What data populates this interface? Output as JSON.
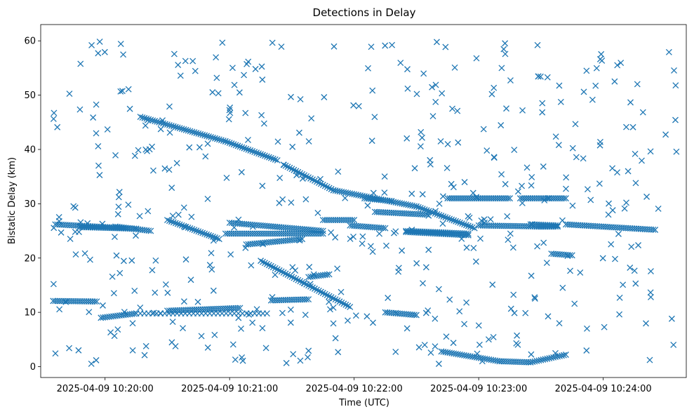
{
  "chart_data": {
    "type": "scatter",
    "title": "Detections in Delay",
    "xlabel": "Time (UTC)",
    "ylabel": "Bistatic Delay (km)",
    "marker": "x",
    "color": "#1f77b4",
    "grid": false,
    "x_axis_type": "datetime",
    "xlim": [
      "2025-04-09 10:19:29",
      "2025-04-09 10:24:40"
    ],
    "ylim": [
      -2,
      63
    ],
    "x_ticks": [
      "2025-04-09 10:20:00",
      "2025-04-09 10:21:00",
      "2025-04-09 10:22:00",
      "2025-04-09 10:23:00",
      "2025-04-09 10:24:00"
    ],
    "y_ticks": [
      0,
      10,
      20,
      30,
      40,
      50,
      60
    ],
    "tracks": [
      {
        "from": [
          "2025-04-09 10:19:36",
          26.2
        ],
        "to": [
          "2025-04-09 10:20:15",
          25.4
        ],
        "step_s": 1
      },
      {
        "from": [
          "2025-04-09 10:19:48",
          25.7
        ],
        "to": [
          "2025-04-09 10:20:15",
          25.4
        ],
        "step_s": 1
      },
      {
        "from": [
          "2025-04-09 10:20:05",
          25.8
        ],
        "to": [
          "2025-04-09 10:20:22",
          25.0
        ],
        "step_s": 1
      },
      {
        "from": [
          "2025-04-09 10:19:35",
          12.1
        ],
        "to": [
          "2025-04-09 10:19:56",
          12.0
        ],
        "step_s": 1
      },
      {
        "from": [
          "2025-04-09 10:19:58",
          9.0
        ],
        "to": [
          "2025-04-09 10:20:15",
          9.8
        ],
        "step_s": 1
      },
      {
        "from": [
          "2025-04-09 10:20:15",
          9.8
        ],
        "to": [
          "2025-04-09 10:21:18",
          9.8
        ],
        "step_s": 2
      },
      {
        "from": [
          "2025-04-09 10:20:30",
          10.3
        ],
        "to": [
          "2025-04-09 10:21:05",
          10.8
        ],
        "step_s": 1
      },
      {
        "from": [
          "2025-04-09 10:20:17",
          46.0
        ],
        "to": [
          "2025-04-09 10:20:58",
          41.5
        ],
        "step_s": 1
      },
      {
        "from": [
          "2025-04-09 10:20:58",
          41.5
        ],
        "to": [
          "2025-04-09 10:21:23",
          38.0
        ],
        "step_s": 1
      },
      {
        "from": [
          "2025-04-09 10:21:26",
          37.2
        ],
        "to": [
          "2025-04-09 10:21:50",
          32.5
        ],
        "step_s": 1
      },
      {
        "from": [
          "2025-04-09 10:21:50",
          32.5
        ],
        "to": [
          "2025-04-09 10:22:30",
          29.5
        ],
        "step_s": 1
      },
      {
        "from": [
          "2025-04-09 10:22:30",
          29.5
        ],
        "to": [
          "2025-04-09 10:22:58",
          25.5
        ],
        "step_s": 1
      },
      {
        "from": [
          "2025-04-09 10:20:30",
          27.0
        ],
        "to": [
          "2025-04-09 10:20:55",
          23.5
        ],
        "step_s": 1
      },
      {
        "from": [
          "2025-04-09 10:20:58",
          24.5
        ],
        "to": [
          "2025-04-09 10:21:45",
          24.5
        ],
        "step_s": 1
      },
      {
        "from": [
          "2025-04-09 10:21:00",
          26.5
        ],
        "to": [
          "2025-04-09 10:21:45",
          25.0
        ],
        "step_s": 1
      },
      {
        "from": [
          "2025-04-09 10:21:08",
          22.5
        ],
        "to": [
          "2025-04-09 10:21:35",
          23.5
        ],
        "step_s": 1
      },
      {
        "from": [
          "2025-04-09 10:21:15",
          19.5
        ],
        "to": [
          "2025-04-09 10:21:58",
          11.0
        ],
        "step_s": 1
      },
      {
        "from": [
          "2025-04-09 10:21:20",
          12.2
        ],
        "to": [
          "2025-04-09 10:21:38",
          12.4
        ],
        "step_s": 1
      },
      {
        "from": [
          "2025-04-09 10:21:38",
          16.5
        ],
        "to": [
          "2025-04-09 10:21:48",
          17.0
        ],
        "step_s": 1
      },
      {
        "from": [
          "2025-04-09 10:21:45",
          27.0
        ],
        "to": [
          "2025-04-09 10:22:00",
          27.0
        ],
        "step_s": 1
      },
      {
        "from": [
          "2025-04-09 10:21:58",
          26.0
        ],
        "to": [
          "2025-04-09 10:22:15",
          25.5
        ],
        "step_s": 1
      },
      {
        "from": [
          "2025-04-09 10:22:05",
          31.0
        ],
        "to": [
          "2025-04-09 10:22:18",
          30.5
        ],
        "step_s": 1
      },
      {
        "from": [
          "2025-04-09 10:22:10",
          28.5
        ],
        "to": [
          "2025-04-09 10:22:35",
          28.0
        ],
        "step_s": 1
      },
      {
        "from": [
          "2025-04-09 10:22:25",
          25.0
        ],
        "to": [
          "2025-04-09 10:22:55",
          24.5
        ],
        "step_s": 1
      },
      {
        "from": [
          "2025-04-09 10:22:25",
          24.8
        ],
        "to": [
          "2025-04-09 10:22:55",
          24.2
        ],
        "step_s": 1
      },
      {
        "from": [
          "2025-04-09 10:22:15",
          10.0
        ],
        "to": [
          "2025-04-09 10:22:30",
          9.5
        ],
        "step_s": 1
      },
      {
        "from": [
          "2025-04-09 10:22:42",
          2.8
        ],
        "to": [
          "2025-04-09 10:23:10",
          1.0
        ],
        "step_s": 1
      },
      {
        "from": [
          "2025-04-09 10:23:10",
          1.0
        ],
        "to": [
          "2025-04-09 10:23:25",
          0.8
        ],
        "step_s": 1
      },
      {
        "from": [
          "2025-04-09 10:23:25",
          0.8
        ],
        "to": [
          "2025-04-09 10:23:42",
          2.2
        ],
        "step_s": 1
      },
      {
        "from": [
          "2025-04-09 10:22:45",
          31.0
        ],
        "to": [
          "2025-04-09 10:23:15",
          31.0
        ],
        "step_s": 1
      },
      {
        "from": [
          "2025-04-09 10:23:20",
          31.0
        ],
        "to": [
          "2025-04-09 10:23:42",
          31.0
        ],
        "step_s": 1
      },
      {
        "from": [
          "2025-04-09 10:23:00",
          26.0
        ],
        "to": [
          "2025-04-09 10:23:32",
          25.8
        ],
        "step_s": 1
      },
      {
        "from": [
          "2025-04-09 10:23:28",
          25.8
        ],
        "to": [
          "2025-04-09 10:23:38",
          25.8
        ],
        "step_s": 1
      },
      {
        "from": [
          "2025-04-09 10:23:35",
          20.8
        ],
        "to": [
          "2025-04-09 10:23:45",
          20.5
        ],
        "step_s": 1
      },
      {
        "from": [
          "2025-04-09 10:23:42",
          26.2
        ],
        "to": [
          "2025-04-09 10:24:25",
          25.2
        ],
        "step_s": 1
      },
      {
        "from": [
          "2025-04-09 10:23:25",
          26.2
        ],
        "to": [
          "2025-04-09 10:23:38",
          26.0
        ],
        "step_s": 1
      }
    ],
    "scatter": {
      "count": 470,
      "x_from": "2025-04-09 10:19:35",
      "x_to": "2025-04-09 10:24:36",
      "y_from": 0.5,
      "y_to": 60,
      "seed": 7
    }
  }
}
